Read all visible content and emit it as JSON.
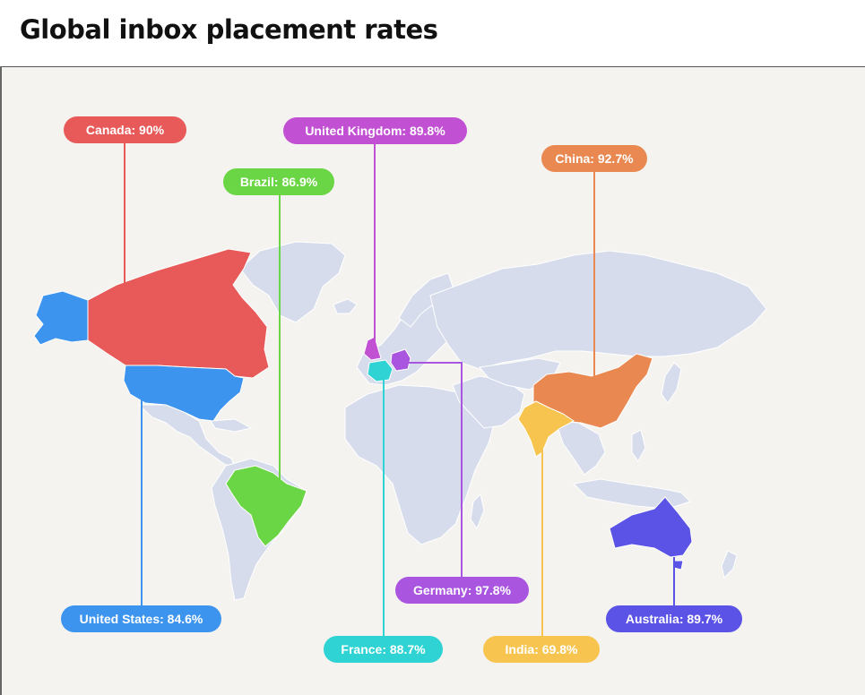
{
  "title": "Global inbox placement rates",
  "countries": [
    {
      "key": "canada",
      "label": "Canada: 90%",
      "color": "#e85a5a"
    },
    {
      "key": "brazil",
      "label": "Brazil: 86.9%",
      "color": "#6bd645"
    },
    {
      "key": "uk",
      "label": "United Kingdom: 89.8%",
      "color": "#c150d3"
    },
    {
      "key": "china",
      "label": "China: 92.7%",
      "color": "#e98951"
    },
    {
      "key": "germany",
      "label": "Germany: 97.8%",
      "color": "#a955e0"
    },
    {
      "key": "us",
      "label": "United States: 84.6%",
      "color": "#3d94ef"
    },
    {
      "key": "france",
      "label": "France: 88.7%",
      "color": "#2fd3d3"
    },
    {
      "key": "india",
      "label": "India: 69.8%",
      "color": "#f7c54f"
    },
    {
      "key": "australia",
      "label": "Australia: 89.7%",
      "color": "#5a53e6"
    }
  ],
  "base_land_color": "#d6dceb"
}
